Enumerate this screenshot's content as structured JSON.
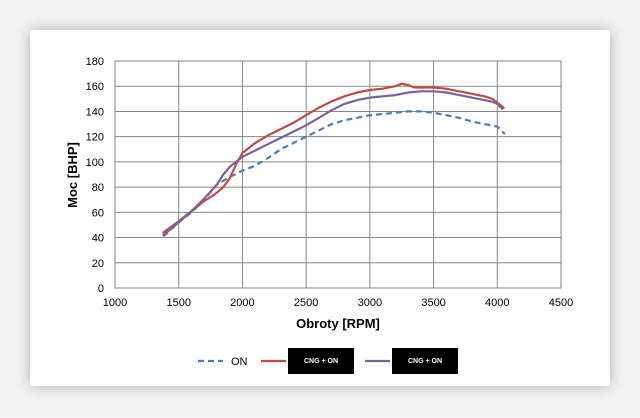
{
  "chart_data": {
    "type": "line",
    "title": "",
    "xlabel": "Obroty [RPM]",
    "ylabel": "Moc [BHP]",
    "xlim": [
      1000,
      4500
    ],
    "ylim": [
      0,
      180
    ],
    "xticks": [
      1000,
      1500,
      2000,
      2500,
      3000,
      3500,
      4000,
      4500
    ],
    "yticks": [
      0,
      20,
      40,
      60,
      80,
      100,
      120,
      140,
      160,
      180
    ],
    "grid": true,
    "legend_position": "bottom",
    "series": [
      {
        "name": "ON",
        "color": "#4a7ebb",
        "style": "dashed",
        "points": [
          [
            1380,
            41
          ],
          [
            1500,
            52
          ],
          [
            1600,
            60
          ],
          [
            1700,
            70
          ],
          [
            1800,
            82
          ],
          [
            1900,
            88
          ],
          [
            2000,
            93
          ],
          [
            2100,
            97
          ],
          [
            2200,
            103
          ],
          [
            2300,
            110
          ],
          [
            2400,
            115
          ],
          [
            2500,
            120
          ],
          [
            2600,
            125
          ],
          [
            2700,
            130
          ],
          [
            2800,
            133
          ],
          [
            2900,
            135
          ],
          [
            3000,
            137
          ],
          [
            3100,
            138
          ],
          [
            3200,
            139
          ],
          [
            3300,
            140
          ],
          [
            3400,
            140
          ],
          [
            3500,
            139
          ],
          [
            3600,
            137
          ],
          [
            3700,
            135
          ],
          [
            3800,
            132
          ],
          [
            3900,
            130
          ],
          [
            4000,
            128
          ],
          [
            4060,
            122
          ]
        ]
      },
      {
        "name": "CNG + ON",
        "color": "#be4b48",
        "style": "solid",
        "points": [
          [
            1380,
            44
          ],
          [
            1500,
            53
          ],
          [
            1600,
            61
          ],
          [
            1700,
            69
          ],
          [
            1780,
            74
          ],
          [
            1850,
            80
          ],
          [
            1900,
            87
          ],
          [
            1950,
            98
          ],
          [
            2000,
            107
          ],
          [
            2100,
            115
          ],
          [
            2200,
            121
          ],
          [
            2300,
            126
          ],
          [
            2400,
            131
          ],
          [
            2500,
            137
          ],
          [
            2600,
            143
          ],
          [
            2700,
            148
          ],
          [
            2800,
            152
          ],
          [
            2900,
            155
          ],
          [
            3000,
            157
          ],
          [
            3100,
            158
          ],
          [
            3200,
            160
          ],
          [
            3250,
            162
          ],
          [
            3300,
            161
          ],
          [
            3350,
            159
          ],
          [
            3400,
            159
          ],
          [
            3500,
            159
          ],
          [
            3600,
            158
          ],
          [
            3700,
            156
          ],
          [
            3800,
            154
          ],
          [
            3900,
            152
          ],
          [
            3960,
            150
          ],
          [
            4000,
            147
          ],
          [
            4050,
            143
          ]
        ]
      },
      {
        "name": "CNG + ON",
        "color": "#7d60a0",
        "style": "solid",
        "points": [
          [
            1380,
            42
          ],
          [
            1500,
            52
          ],
          [
            1600,
            61
          ],
          [
            1700,
            71
          ],
          [
            1800,
            82
          ],
          [
            1850,
            90
          ],
          [
            1900,
            96
          ],
          [
            2000,
            104
          ],
          [
            2100,
            109
          ],
          [
            2200,
            114
          ],
          [
            2300,
            119
          ],
          [
            2400,
            124
          ],
          [
            2500,
            129
          ],
          [
            2600,
            135
          ],
          [
            2700,
            141
          ],
          [
            2800,
            146
          ],
          [
            2900,
            149
          ],
          [
            3000,
            151
          ],
          [
            3100,
            152
          ],
          [
            3200,
            153
          ],
          [
            3300,
            155
          ],
          [
            3400,
            156
          ],
          [
            3500,
            156
          ],
          [
            3600,
            155
          ],
          [
            3700,
            153
          ],
          [
            3800,
            151
          ],
          [
            3900,
            149
          ],
          [
            3950,
            148
          ],
          [
            4000,
            146
          ],
          [
            4040,
            142
          ]
        ]
      }
    ]
  }
}
